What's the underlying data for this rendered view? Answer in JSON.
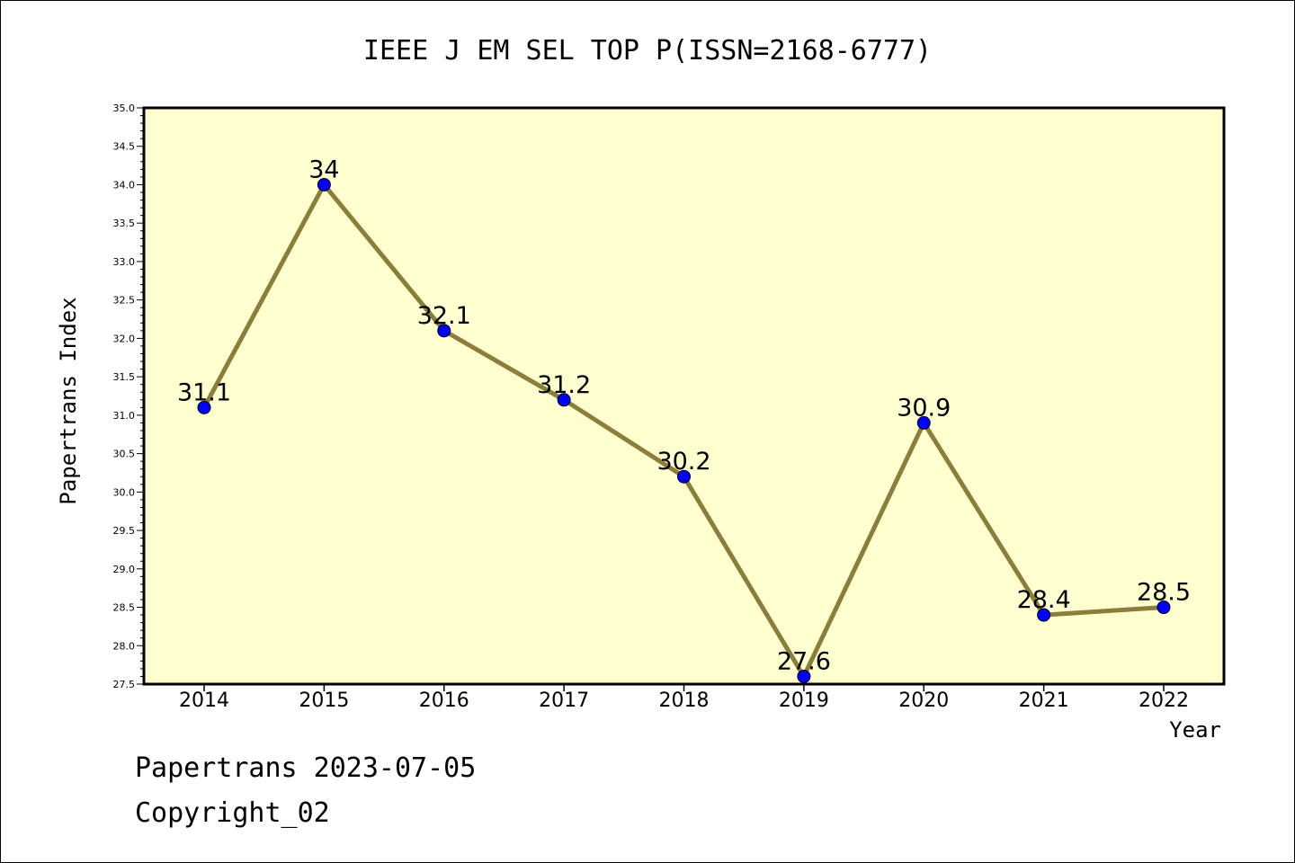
{
  "chart_data": {
    "type": "line",
    "title": "IEEE J EM SEL TOP P(ISSN=2168-6777)",
    "xlabel": "Year",
    "ylabel": "Papertrans Index",
    "categories": [
      "2014",
      "2015",
      "2016",
      "2017",
      "2018",
      "2019",
      "2020",
      "2021",
      "2022"
    ],
    "series": [
      {
        "values": [
          31.1,
          34,
          32.1,
          31.2,
          30.2,
          27.6,
          30.9,
          28.4,
          28.5
        ],
        "labels": [
          "31.1",
          "34",
          "32.1",
          "31.2",
          "30.2",
          "27.6",
          "30.9",
          "28.4",
          "28.5"
        ]
      }
    ],
    "ylim": [
      27.5,
      35.0
    ],
    "yticks": [
      "27.5",
      "28.0",
      "28.5",
      "29.0",
      "29.5",
      "30.0",
      "30.5",
      "31.0",
      "31.5",
      "32.0",
      "32.5",
      "33.0",
      "33.5",
      "34.0",
      "34.5",
      "35.0"
    ],
    "grid": false,
    "colors": {
      "plot_background": "#ffffd0",
      "line": "#8b7d3a",
      "marker": "#0000ff"
    }
  },
  "footer": {
    "line1": "Papertrans 2023-07-05",
    "line2": "Copyright_02"
  }
}
